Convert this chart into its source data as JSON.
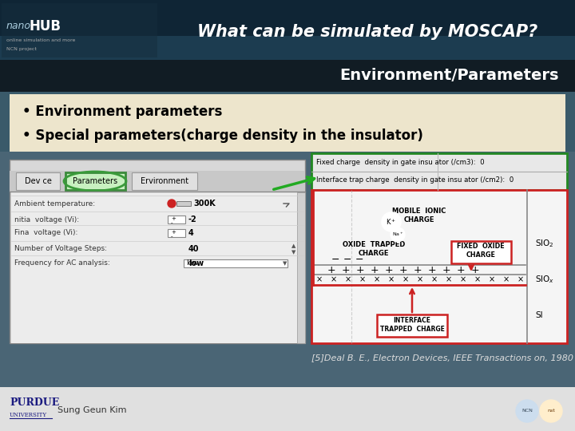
{
  "title": "What can be simulated by MOSCAP?",
  "subtitle": "Environment/Parameters",
  "bullet1": "• Environment parameters",
  "bullet2": "• Special parameters(charge density in the insulator)",
  "reference": "[5]Deal B. E., Electron Devices, IEEE Transactions on, 1980",
  "footer_text": "Sung Geun Kim",
  "header_bg_top": "#1a3a4a",
  "header_bg_bottom": "#0d2535",
  "subtitle_bar_color": "#1a2a35",
  "content_bg": "#f0ead8",
  "main_bg": "#4a6a7a",
  "bottom_bg": "#e8e8e8",
  "tab_highlight_color": "#c8f0c0",
  "tab_highlight_edge": "#3a8a3a",
  "fixed_charge_text": "Fixed charge  density in gate insu ator (/cm3):  0",
  "interface_charge_text": "Interface trap charge  density in gate insu ator (/cm2):  0",
  "rows": [
    [
      "Ambient temperature:",
      "300K",
      true
    ],
    [
      "nitia  voltage (Vi):",
      "-2",
      false
    ],
    [
      "Fina  voltage (Vi):",
      "4",
      false
    ],
    [
      "Number of Voltage Steps:",
      "40",
      false
    ],
    [
      "Frequency for AC analysis:",
      "low",
      false
    ]
  ],
  "tabs": [
    "Dev ce",
    "Parameters",
    "Ervironment"
  ],
  "tab_highlighted": 1
}
